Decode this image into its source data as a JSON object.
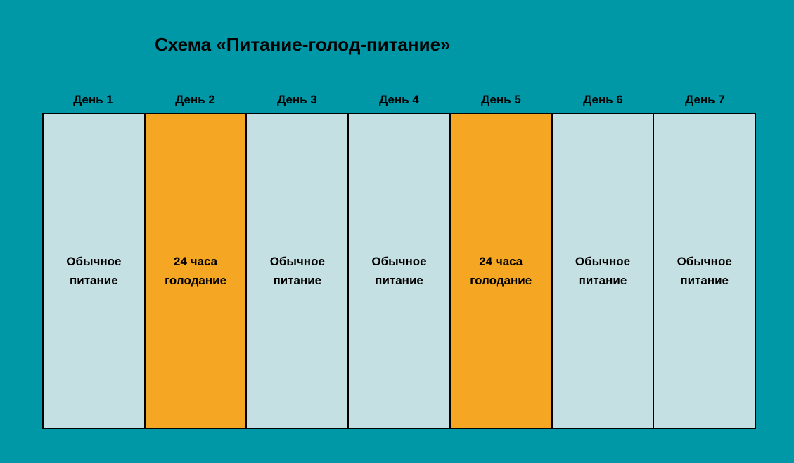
{
  "title": "Схема «Питание-голод-питание»",
  "chart": {
    "type": "table",
    "background_color": "#0097a7",
    "title_color": "#000000",
    "header_text_color": "#000000",
    "label_text_color": "#000000",
    "border_color": "#000000",
    "header_fontsize": 17,
    "label_fontsize": 17,
    "title_fontsize": 26,
    "column_height": 450,
    "columns": [
      {
        "header": "День 1",
        "line1": "Обычное",
        "line2": "питание",
        "bg_color": "#c5e0e3"
      },
      {
        "header": "День 2",
        "line1": "24 часа",
        "line2": "голодание",
        "bg_color": "#f5a623"
      },
      {
        "header": "День 3",
        "line1": "Обычное",
        "line2": "питание",
        "bg_color": "#c5e0e3"
      },
      {
        "header": "День 4",
        "line1": "Обычное",
        "line2": "питание",
        "bg_color": "#c5e0e3"
      },
      {
        "header": "День 5",
        "line1": "24 часа",
        "line2": "голодание",
        "bg_color": "#f5a623"
      },
      {
        "header": "День 6",
        "line1": "Обычное",
        "line2": "питание",
        "bg_color": "#c5e0e3"
      },
      {
        "header": "День 7",
        "line1": "Обычное",
        "line2": "питание",
        "bg_color": "#c5e0e3"
      }
    ]
  }
}
